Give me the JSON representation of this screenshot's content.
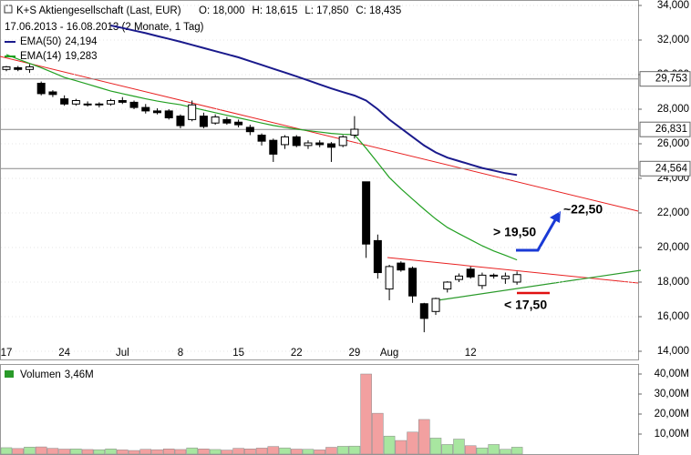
{
  "chart_data": {
    "type": "candlestick",
    "title": "K+S Aktiengesellschaft (Last, EUR)",
    "quote": [
      "O: 18,000",
      "H: 18,615",
      "L: 17,850",
      "C: 18,435"
    ],
    "subtitle": "17.06.2013 - 16.08.2013 (2 Monate, 1 Tag)",
    "categories": [
      "17",
      null,
      null,
      null,
      null,
      "24",
      null,
      null,
      null,
      null,
      "Jul",
      null,
      null,
      null,
      null,
      "8",
      null,
      null,
      null,
      null,
      "15",
      null,
      null,
      null,
      null,
      "22",
      null,
      null,
      null,
      null,
      "29",
      null,
      null,
      "Aug",
      null,
      null,
      null,
      null,
      null,
      null,
      "12",
      null,
      null,
      null,
      null
    ],
    "open": [
      30300,
      30400,
      30300,
      29500,
      29000,
      28600,
      28300,
      28300,
      28250,
      28300,
      28500,
      28400,
      28100,
      27900,
      27900,
      27600,
      27400,
      27600,
      27200,
      27400,
      27250,
      26950,
      26500,
      26200,
      25950,
      26400,
      25900,
      26050,
      26000,
      25900,
      26500,
      23800,
      20400,
      17600,
      19100,
      18800,
      16750,
      16300,
      17600,
      18150,
      18750,
      17800,
      18400,
      18200,
      18000
    ],
    "high": [
      30500,
      30500,
      30600,
      29600,
      29100,
      28800,
      28600,
      28450,
      28400,
      28600,
      28700,
      28500,
      28300,
      28050,
      28000,
      27700,
      28500,
      27800,
      27700,
      27550,
      27400,
      27100,
      26600,
      26300,
      26500,
      26500,
      26200,
      26200,
      26100,
      26500,
      27600,
      23800,
      20750,
      19000,
      19200,
      18900,
      16800,
      17100,
      18050,
      18500,
      18900,
      18550,
      18500,
      18550,
      18615
    ],
    "low": [
      30200,
      30200,
      30100,
      28800,
      28700,
      28200,
      28200,
      28150,
      28100,
      28200,
      28300,
      28000,
      27750,
      27700,
      27400,
      26900,
      27300,
      26900,
      27100,
      27100,
      26950,
      26500,
      25900,
      24950,
      25700,
      25800,
      25700,
      25800,
      24950,
      25800,
      26300,
      19400,
      18200,
      16950,
      18600,
      16800,
      15100,
      16100,
      17400,
      18000,
      18200,
      17600,
      18200,
      17900,
      17850
    ],
    "close": [
      30450,
      30300,
      30450,
      28900,
      28850,
      28300,
      28500,
      28250,
      28300,
      28500,
      28400,
      28100,
      27900,
      27800,
      27500,
      27050,
      28250,
      27000,
      27550,
      27200,
      27100,
      26700,
      26150,
      25400,
      26400,
      25900,
      26050,
      25950,
      25800,
      26400,
      26840,
      20200,
      18550,
      18900,
      18700,
      17200,
      15900,
      17050,
      18000,
      18350,
      18300,
      18400,
      18400,
      18350,
      18435
    ],
    "up_color": "#ffffff",
    "down_color": "#000000",
    "indicators": [
      {
        "name": "EMA(50)",
        "value_label": "24,194",
        "color": "#1a1a8c",
        "values": [
          null,
          null,
          null,
          null,
          null,
          null,
          null,
          null,
          null,
          32840,
          32700,
          32550,
          32400,
          32230,
          32070,
          31900,
          31720,
          31540,
          31360,
          31180,
          31000,
          30780,
          30560,
          30340,
          30120,
          29900,
          29670,
          29430,
          29200,
          28990,
          28790,
          28500,
          28000,
          27400,
          26900,
          26400,
          25900,
          25500,
          25200,
          25000,
          24800,
          24600,
          24450,
          24300,
          24194
        ]
      },
      {
        "name": "EMA(14)",
        "value_label": "19,283",
        "color": "#22a022",
        "values": [
          31160,
          30900,
          30650,
          30400,
          30120,
          29840,
          29650,
          29450,
          29250,
          29050,
          28900,
          28750,
          28600,
          28470,
          28360,
          28260,
          28100,
          27950,
          27800,
          27650,
          27500,
          27350,
          27200,
          27060,
          26950,
          26850,
          26760,
          26680,
          26600,
          26550,
          26530,
          25740,
          24900,
          24050,
          23400,
          22800,
          22210,
          21650,
          21160,
          20800,
          20450,
          20100,
          19800,
          19550,
          19283
        ]
      }
    ],
    "levels": [
      {
        "value": 29753,
        "label": "29,753"
      },
      {
        "value": 26831,
        "label": "26,831"
      },
      {
        "value": 24564,
        "label": "24,564"
      }
    ],
    "annotations": [
      {
        "text": "> 19,50",
        "color": "#1a3ad6"
      },
      {
        "text": "~22,50",
        "color": "#1a3ad6"
      },
      {
        "text": "< 17,50",
        "color": "#e01010"
      }
    ],
    "ylim": [
      14000,
      34000
    ],
    "yticks": [
      {
        "value": 14000,
        "label": "14,000"
      },
      {
        "value": 16000,
        "label": "16,000"
      },
      {
        "value": 18000,
        "label": "18,000"
      },
      {
        "value": 20000,
        "label": "20,000"
      },
      {
        "value": 22000,
        "label": "22,000"
      },
      {
        "value": 24000,
        "label": "24,000"
      },
      {
        "value": 26000,
        "label": "26,000"
      },
      {
        "value": 28000,
        "label": "28,000"
      },
      {
        "value": 30000,
        "label": "30,000"
      },
      {
        "value": 32000,
        "label": "32,000"
      },
      {
        "value": 34000,
        "label": "34,000"
      }
    ],
    "grid": true,
    "volume": {
      "name": "Volumen",
      "value_label": "3,46M",
      "values": [
        3.2,
        2.8,
        3.5,
        3.6,
        2.9,
        2.5,
        2.6,
        2.3,
        2.2,
        2.6,
        2.1,
        1.8,
        2.4,
        2.2,
        2.6,
        2.3,
        3.1,
        2.6,
        2.3,
        2.0,
        2.9,
        2.6,
        3.0,
        3.8,
        3.1,
        2.5,
        2.4,
        2.1,
        3.4,
        3.9,
        4.0,
        40.0,
        20.4,
        9.0,
        6.8,
        11.0,
        17.3,
        8.0,
        4.8,
        7.5,
        4.2,
        3.1,
        4.8,
        2.4,
        3.46
      ],
      "up_color": "#a8e6a0",
      "down_color": "#f2a0a0",
      "ylim": [
        0,
        45
      ],
      "yticks": [
        {
          "value": 10,
          "label": "10,00M"
        },
        {
          "value": 20,
          "label": "20,00M"
        },
        {
          "value": 30,
          "label": "30,00M"
        },
        {
          "value": 40,
          "label": "40,00M"
        }
      ]
    }
  }
}
